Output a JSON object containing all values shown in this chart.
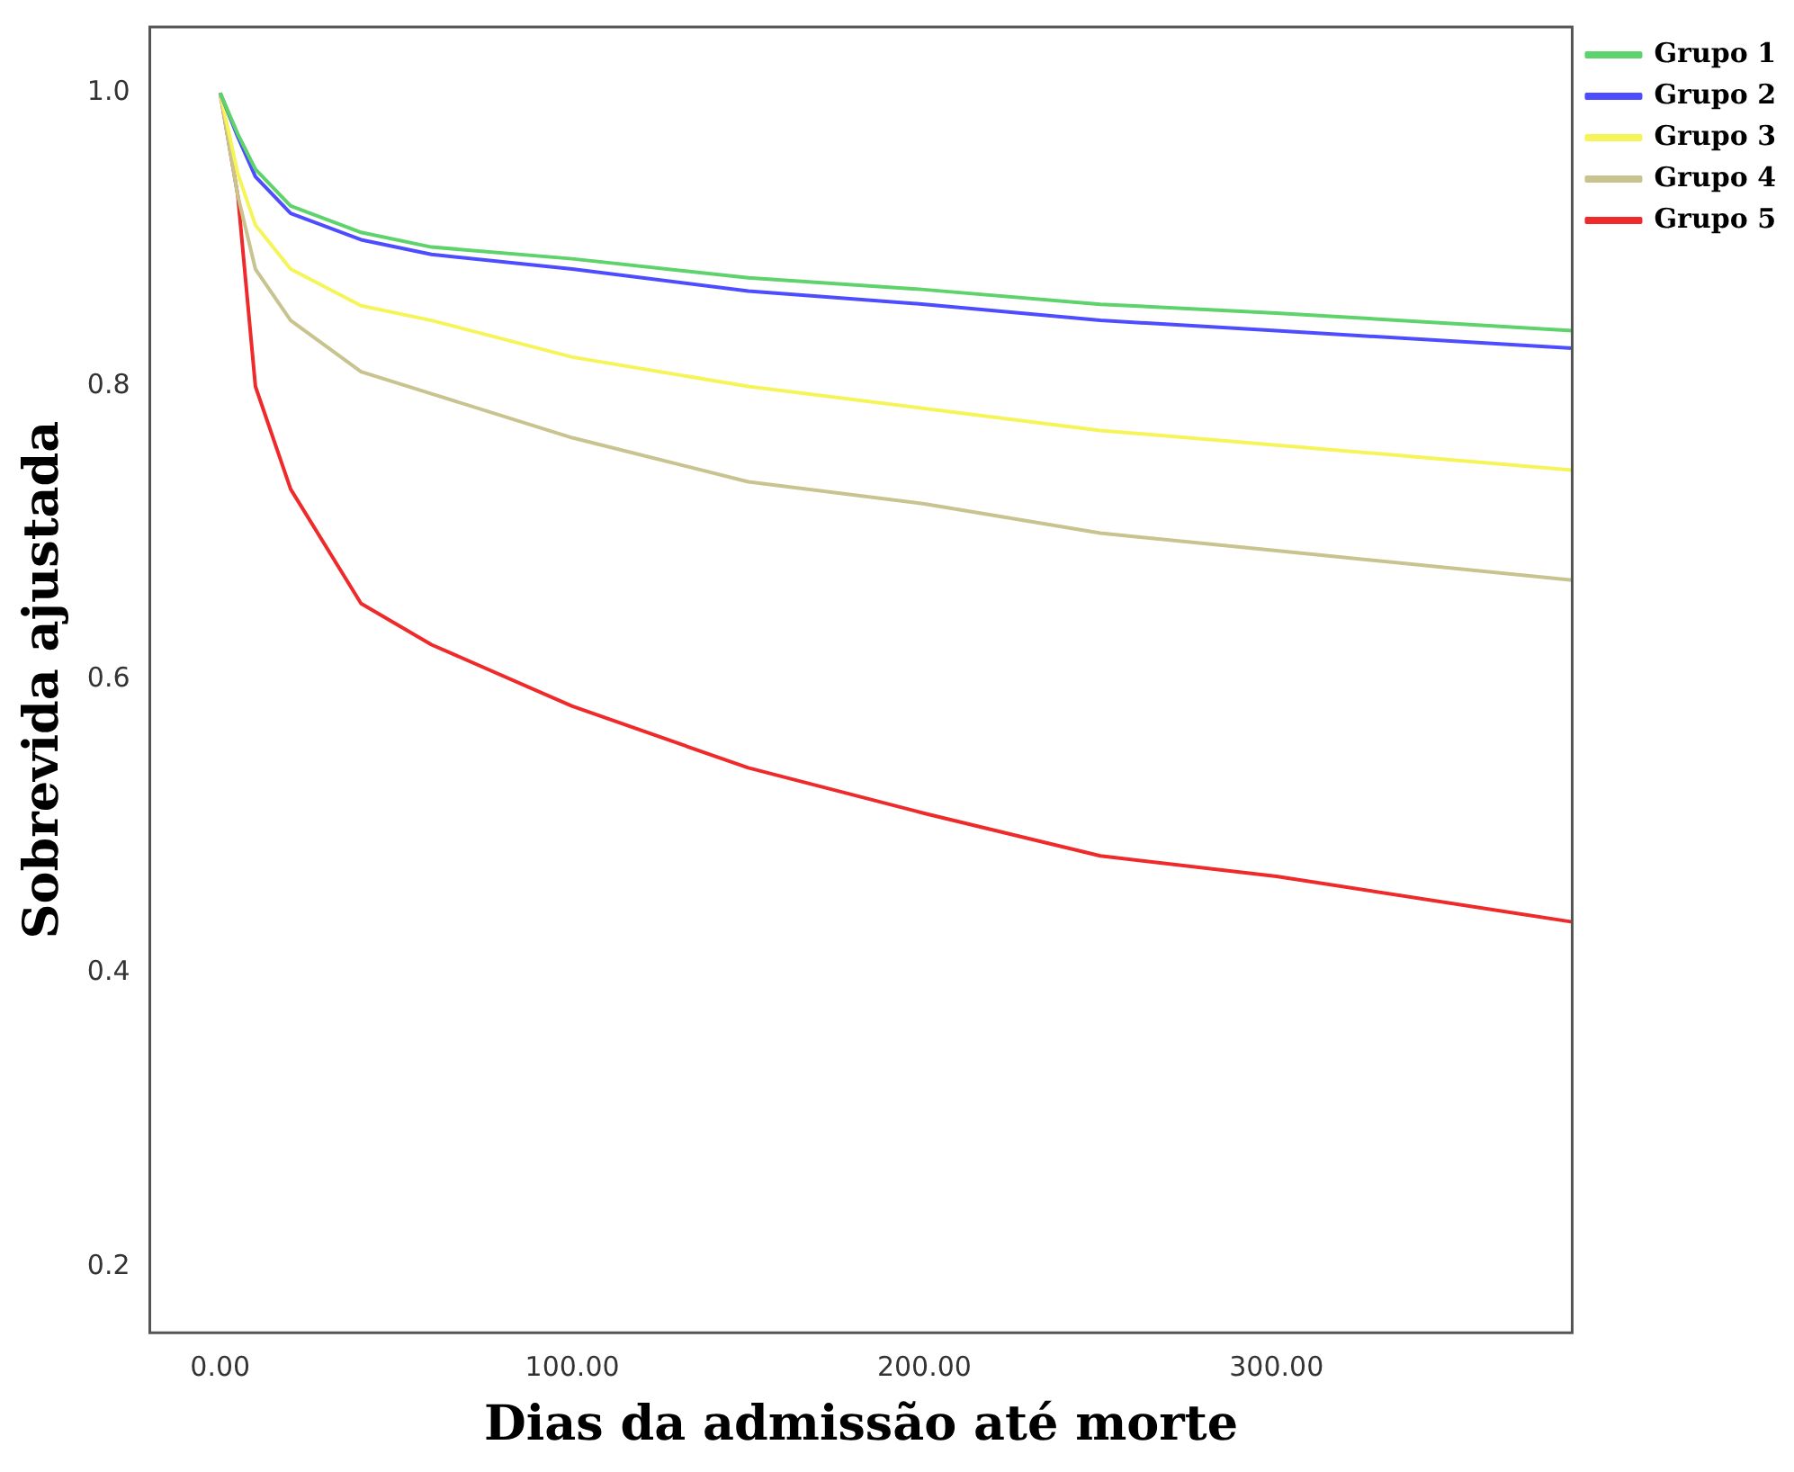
{
  "chart_data": {
    "type": "line",
    "xlabel": "Dias da admissão até morte",
    "ylabel": "Sobrevida ajustada",
    "xlim": [
      -20,
      384
    ],
    "ylim": [
      0.155,
      1.045
    ],
    "xticks": [
      {
        "value": 0,
        "label": "0.00"
      },
      {
        "value": 100,
        "label": "100.00"
      },
      {
        "value": 200,
        "label": "200.00"
      },
      {
        "value": 300,
        "label": "300.00"
      }
    ],
    "yticks": [
      {
        "value": 0.2,
        "label": "0.2"
      },
      {
        "value": 0.4,
        "label": "0.4"
      },
      {
        "value": 0.6,
        "label": "0.6"
      },
      {
        "value": 0.8,
        "label": "0.8"
      },
      {
        "value": 1,
        "label": "1.0"
      }
    ],
    "grid": false,
    "legend": "right",
    "marker": "none",
    "line_style": "solid",
    "x": [
      0,
      5,
      10,
      20,
      40,
      60,
      100,
      150,
      200,
      250,
      300,
      384
    ],
    "series": [
      {
        "name": "Grupo 1",
        "color": "#5ed36b",
        "values": [
          1,
          0.972,
          0.948,
          0.923,
          0.905,
          0.895,
          0.887,
          0.874,
          0.866,
          0.856,
          0.85,
          0.838
        ]
      },
      {
        "name": "Grupo 2",
        "color": "#4d4dff",
        "values": [
          1,
          0.97,
          0.943,
          0.918,
          0.9,
          0.89,
          0.88,
          0.865,
          0.856,
          0.845,
          0.838,
          0.826
        ]
      },
      {
        "name": "Grupo 3",
        "color": "#f5f55a",
        "values": [
          1,
          0.945,
          0.91,
          0.88,
          0.855,
          0.845,
          0.82,
          0.8,
          0.785,
          0.77,
          0.76,
          0.743
        ]
      },
      {
        "name": "Grupo 4",
        "color": "#c8c38f",
        "values": [
          1,
          0.93,
          0.88,
          0.845,
          0.81,
          0.795,
          0.765,
          0.735,
          0.72,
          0.7,
          0.688,
          0.668
        ]
      },
      {
        "name": "Grupo 5",
        "color": "#ee2a2a",
        "values": [
          1,
          0.93,
          0.8,
          0.73,
          0.652,
          0.624,
          0.582,
          0.54,
          0.509,
          0.48,
          0.466,
          0.435
        ]
      }
    ]
  }
}
